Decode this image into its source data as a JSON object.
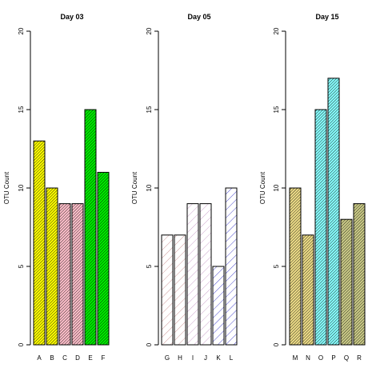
{
  "chart_data": [
    {
      "type": "bar",
      "title": "Day 03",
      "ylabel": "OTU Count",
      "ylim": [
        0,
        20
      ],
      "yticks": [
        0,
        5,
        10,
        15,
        20
      ],
      "categories": [
        "A",
        "B",
        "C",
        "D",
        "E",
        "F"
      ],
      "values": [
        13,
        10,
        9,
        9,
        15,
        11
      ],
      "colors": [
        "#ffff00",
        "#ffff00",
        "#ffc0cb",
        "#ffc0cb",
        "#00ee00",
        "#00ee00"
      ],
      "hatch_color": "#000000",
      "hatch": "dense diagonal"
    },
    {
      "type": "bar",
      "title": "Day 05",
      "ylabel": "OTU Count",
      "ylim": [
        0,
        20
      ],
      "yticks": [
        0,
        5,
        10,
        15,
        20
      ],
      "categories": [
        "G",
        "H",
        "I",
        "J",
        "K",
        "L"
      ],
      "values": [
        7,
        7,
        9,
        9,
        5,
        10
      ],
      "colors": [
        "#ffffff",
        "#ffffff",
        "#ffffff",
        "#ffffff",
        "#ffffff",
        "#ffffff"
      ],
      "hatch_colors": [
        "#c08080",
        "#c08080",
        "#c090c0",
        "#c090c0",
        "#2020c0",
        "#2020c0"
      ],
      "hatch": "sparse diagonal"
    },
    {
      "type": "bar",
      "title": "Day 15",
      "ylabel": "OTU Count",
      "ylim": [
        0,
        20
      ],
      "yticks": [
        0,
        5,
        10,
        15,
        20
      ],
      "categories": [
        "M",
        "N",
        "O",
        "P",
        "Q",
        "R"
      ],
      "values": [
        10,
        7,
        15,
        17,
        8,
        9
      ],
      "colors": [
        "#eedd88",
        "#eedd88",
        "#88ffff",
        "#88ffff",
        "#cccc88",
        "#cccc88"
      ],
      "hatch_color": "#000000",
      "hatch": "dense diagonal"
    }
  ]
}
